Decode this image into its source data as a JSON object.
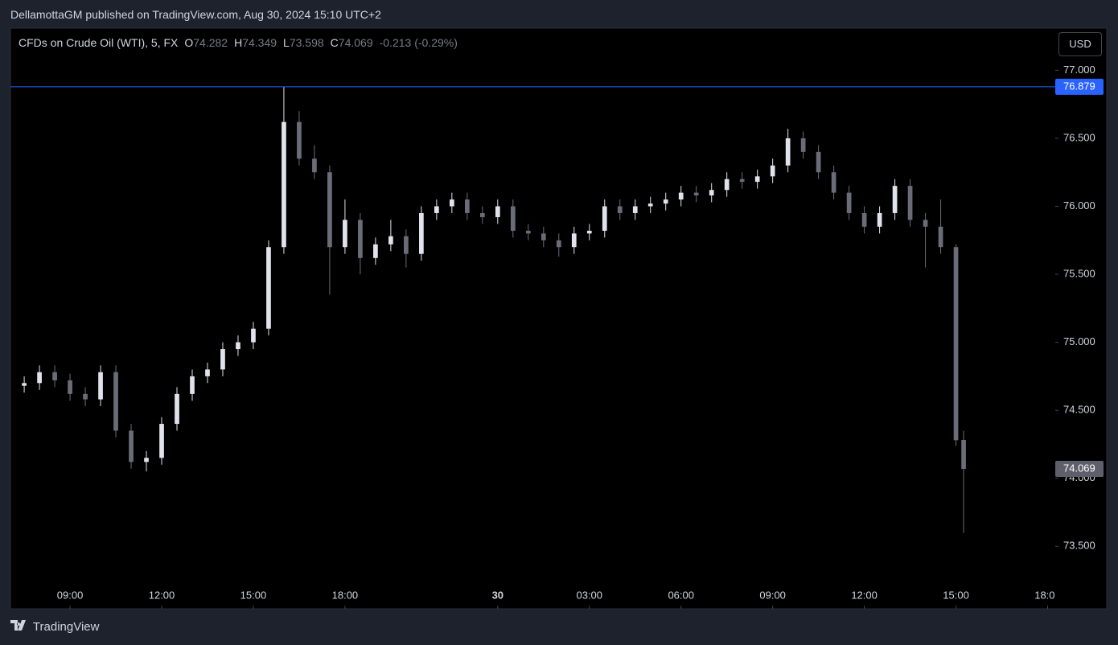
{
  "header": {
    "published": "DellamottaGM published on TradingView.com, Aug 30, 2024 15:10 UTC+2",
    "symbol": "CFDs on Crude Oil (WTI), 5, FX",
    "ohlc_keys": [
      "O",
      "H",
      "L",
      "C"
    ],
    "change": "-0.213 (-0.29%)",
    "currency": "USD"
  },
  "footer": {
    "brand": "TradingView"
  },
  "chart_data": {
    "type": "candlestick",
    "x": [
      -1.5,
      -1,
      -0.5,
      0,
      0.5,
      1,
      1.5,
      2,
      2.5,
      3,
      3.5,
      4,
      4.5,
      5,
      5.5,
      6,
      6.5,
      7,
      7.5,
      8,
      8.5,
      9,
      9.5,
      10,
      10.5,
      11,
      11.5,
      12,
      12.5,
      13,
      13.5,
      14,
      14.5,
      15,
      15.5,
      16,
      16.5,
      17,
      17.5,
      18,
      18.5,
      19,
      19.5,
      20,
      20.5,
      21,
      21.5,
      22,
      22.5,
      23,
      23.5,
      24,
      24.5,
      25,
      25.5,
      26,
      26.5,
      27,
      27.5,
      28,
      28.5,
      29,
      29.25
    ],
    "open": [
      74.68,
      74.7,
      74.78,
      74.72,
      74.62,
      74.58,
      74.78,
      74.35,
      74.12,
      74.15,
      74.4,
      74.62,
      74.75,
      74.8,
      74.95,
      75.0,
      75.1,
      75.7,
      76.62,
      76.35,
      76.25,
      75.7,
      75.9,
      75.62,
      75.72,
      75.78,
      75.65,
      75.95,
      76.0,
      76.05,
      75.95,
      75.92,
      76.0,
      75.82,
      75.8,
      75.75,
      75.7,
      75.8,
      75.82,
      76.0,
      75.95,
      76.0,
      76.02,
      76.05,
      76.1,
      76.08,
      76.12,
      76.2,
      76.18,
      76.22,
      76.3,
      76.5,
      76.4,
      76.25,
      76.1,
      75.95,
      75.85,
      75.95,
      76.15,
      75.9,
      75.85,
      75.7,
      74.282
    ],
    "high": [
      74.75,
      74.83,
      74.83,
      74.77,
      74.67,
      74.83,
      74.83,
      74.4,
      74.2,
      74.45,
      74.67,
      74.8,
      74.85,
      75.0,
      75.05,
      75.15,
      75.75,
      76.88,
      76.7,
      76.45,
      76.3,
      76.05,
      75.95,
      75.77,
      75.9,
      75.83,
      76.0,
      76.05,
      76.1,
      76.1,
      76.0,
      76.05,
      76.05,
      75.87,
      75.85,
      75.8,
      75.85,
      75.87,
      76.05,
      76.05,
      76.05,
      76.07,
      76.1,
      76.15,
      76.15,
      76.17,
      76.25,
      76.25,
      76.27,
      76.35,
      76.57,
      76.55,
      76.45,
      76.3,
      76.15,
      76.0,
      76.0,
      76.2,
      76.2,
      75.95,
      76.05,
      75.72,
      74.349
    ],
    "low": [
      74.63,
      74.65,
      74.67,
      74.57,
      74.53,
      74.53,
      74.3,
      74.07,
      74.05,
      74.1,
      74.35,
      74.57,
      74.7,
      74.75,
      74.9,
      74.95,
      75.05,
      75.65,
      76.3,
      76.2,
      75.35,
      75.65,
      75.5,
      75.57,
      75.67,
      75.55,
      75.6,
      75.9,
      75.95,
      75.9,
      75.87,
      75.87,
      75.77,
      75.75,
      75.7,
      75.63,
      75.65,
      75.75,
      75.77,
      75.9,
      75.9,
      75.95,
      75.97,
      76.0,
      76.03,
      76.03,
      76.07,
      76.13,
      76.13,
      76.17,
      76.25,
      76.35,
      76.2,
      76.05,
      75.9,
      75.8,
      75.8,
      75.9,
      75.85,
      75.55,
      75.65,
      74.24,
      73.598
    ],
    "close": [
      74.7,
      74.78,
      74.72,
      74.62,
      74.58,
      74.78,
      74.35,
      74.12,
      74.15,
      74.4,
      74.62,
      74.75,
      74.8,
      74.95,
      75.0,
      75.1,
      75.7,
      76.62,
      76.35,
      76.25,
      75.7,
      75.9,
      75.62,
      75.72,
      75.78,
      75.65,
      75.95,
      76.0,
      76.05,
      75.95,
      75.92,
      76.0,
      75.82,
      75.8,
      75.75,
      75.7,
      75.8,
      75.82,
      76.0,
      75.95,
      76.0,
      76.02,
      76.05,
      76.1,
      76.08,
      76.12,
      76.2,
      76.18,
      76.22,
      76.3,
      76.5,
      76.4,
      76.25,
      76.1,
      75.95,
      75.85,
      75.95,
      76.15,
      75.9,
      75.85,
      75.7,
      74.28,
      74.069
    ],
    "up_color": "#e0e3eb",
    "down_color": "#6a6d78",
    "xlim": [
      -1.95,
      32.25
    ],
    "xticks": [
      {
        "value": 0,
        "label": "09:00"
      },
      {
        "value": 3,
        "label": "12:00"
      },
      {
        "value": 6,
        "label": "15:00"
      },
      {
        "value": 9,
        "label": "18:00"
      },
      {
        "value": 14,
        "label": "30"
      },
      {
        "value": 17,
        "label": "03:00"
      },
      {
        "value": 20,
        "label": "06:00"
      },
      {
        "value": 23,
        "label": "09:00"
      },
      {
        "value": 26,
        "label": "12:00"
      },
      {
        "value": 29,
        "label": "15:00"
      },
      {
        "value": 32,
        "label": "18:00"
      }
    ],
    "ylim": [
      73.04,
      77.31
    ],
    "yticks": [
      {
        "value": 73.5,
        "label": "73.500"
      },
      {
        "value": 74,
        "label": "74.000"
      },
      {
        "value": 74.5,
        "label": "74.500"
      },
      {
        "value": 75,
        "label": "75.000"
      },
      {
        "value": 75.5,
        "label": "75.500"
      },
      {
        "value": 76,
        "label": "76.000"
      },
      {
        "value": 76.5,
        "label": "76.500"
      },
      {
        "value": 77,
        "label": "77.000"
      }
    ],
    "high_line": {
      "value": 76.879,
      "label": "76.879",
      "color": "#2962ff"
    },
    "last_price": {
      "value": 74.069,
      "label": "74.069",
      "color": "#5d606b"
    }
  }
}
